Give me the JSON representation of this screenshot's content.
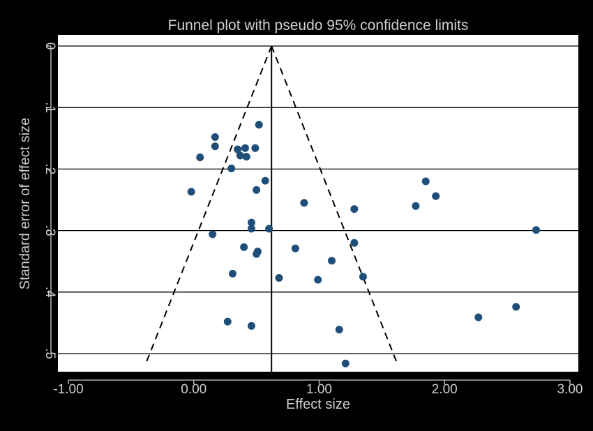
{
  "chart_data": {
    "type": "scatter",
    "title": "Funnel plot with pseudo 95% confidence limits",
    "xlabel": "Effect size",
    "ylabel": "Standard error of effect size",
    "xlim": [
      -1.0,
      3.0
    ],
    "ylim": [
      0,
      0.53
    ],
    "y_reversed": true,
    "x_ticks": [
      -1.0,
      0.0,
      1.0,
      2.0,
      3.0
    ],
    "x_tick_labels": [
      "-1.00",
      "0.00",
      "1.00",
      "2.00",
      "3.00"
    ],
    "y_ticks": [
      0,
      0.1,
      0.2,
      0.3,
      0.4,
      0.5
    ],
    "y_tick_labels": [
      "0",
      ".1",
      ".2",
      ".3",
      ".4",
      ".5"
    ],
    "grid": "horizontal",
    "pooled_effect": 0.62,
    "ci_limits": {
      "lower_at_max_se": -0.38,
      "upper_at_max_se": 1.62,
      "max_se": 0.515
    },
    "colors": {
      "background": "#000000",
      "plot_area": "#ffffff",
      "marker": "#1f4e79",
      "text": "#cfcfcf"
    },
    "points": [
      {
        "x": 0.52,
        "y": 0.128
      },
      {
        "x": 0.17,
        "y": 0.148
      },
      {
        "x": 0.17,
        "y": 0.163
      },
      {
        "x": 0.35,
        "y": 0.168
      },
      {
        "x": 0.41,
        "y": 0.166
      },
      {
        "x": 0.49,
        "y": 0.166
      },
      {
        "x": 0.37,
        "y": 0.178
      },
      {
        "x": 0.42,
        "y": 0.18
      },
      {
        "x": 0.05,
        "y": 0.181
      },
      {
        "x": 0.3,
        "y": 0.199
      },
      {
        "x": 0.57,
        "y": 0.219
      },
      {
        "x": 1.85,
        "y": 0.22
      },
      {
        "x": -0.02,
        "y": 0.237
      },
      {
        "x": 0.5,
        "y": 0.234
      },
      {
        "x": 1.93,
        "y": 0.244
      },
      {
        "x": 0.88,
        "y": 0.255
      },
      {
        "x": 1.77,
        "y": 0.26
      },
      {
        "x": 1.28,
        "y": 0.265
      },
      {
        "x": 0.46,
        "y": 0.287
      },
      {
        "x": 0.46,
        "y": 0.297
      },
      {
        "x": 0.6,
        "y": 0.297
      },
      {
        "x": 2.73,
        "y": 0.299
      },
      {
        "x": 0.15,
        "y": 0.306
      },
      {
        "x": 1.28,
        "y": 0.32
      },
      {
        "x": 0.4,
        "y": 0.327
      },
      {
        "x": 0.81,
        "y": 0.329
      },
      {
        "x": 0.51,
        "y": 0.334
      },
      {
        "x": 0.5,
        "y": 0.338
      },
      {
        "x": 1.1,
        "y": 0.349
      },
      {
        "x": 0.31,
        "y": 0.37
      },
      {
        "x": 0.68,
        "y": 0.377
      },
      {
        "x": 0.99,
        "y": 0.38
      },
      {
        "x": 1.35,
        "y": 0.375
      },
      {
        "x": 2.57,
        "y": 0.424
      },
      {
        "x": 2.27,
        "y": 0.441
      },
      {
        "x": 0.27,
        "y": 0.448
      },
      {
        "x": 0.46,
        "y": 0.455
      },
      {
        "x": 1.16,
        "y": 0.461
      },
      {
        "x": 1.21,
        "y": 0.516
      }
    ]
  }
}
